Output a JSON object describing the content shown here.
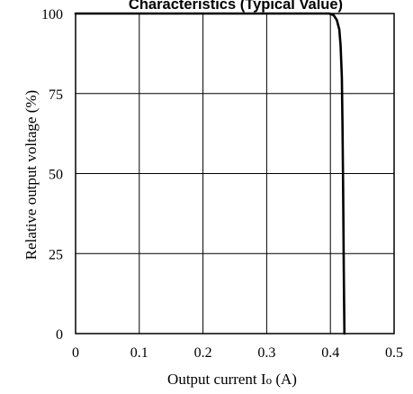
{
  "chart_data": {
    "type": "line",
    "title": "Characteristics (Typical Value)",
    "xlabel": "Output current Io (A)",
    "ylabel": "Relative output voltage (%)",
    "xlim": [
      0,
      0.5
    ],
    "ylim": [
      0,
      100
    ],
    "x_ticks": [
      "0",
      "0.1",
      "0.2",
      "0.3",
      "0.4",
      "0.5"
    ],
    "y_ticks": [
      "0",
      "25",
      "50",
      "75",
      "100"
    ],
    "grid": true,
    "series": [
      {
        "x": [
          0,
          0.398,
          0.405,
          0.41,
          0.414,
          0.416,
          0.418,
          0.419,
          0.42,
          0.421,
          0.422
        ],
        "y": [
          100,
          100,
          99.5,
          98,
          95,
          90,
          80,
          65,
          45,
          20,
          0
        ]
      }
    ]
  }
}
